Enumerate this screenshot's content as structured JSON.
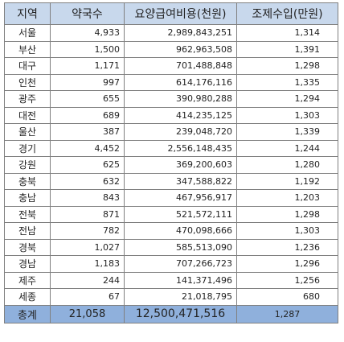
{
  "headers": [
    "지역",
    "약국수",
    "요양급여비용(천원)",
    "조제수입(만원)"
  ],
  "rows": [
    {
      "region": "서울",
      "pharmacies": "4,933",
      "cost": "2,989,843,251",
      "income": "1,314"
    },
    {
      "region": "부산",
      "pharmacies": "1,500",
      "cost": "962,963,508",
      "income": "1,391"
    },
    {
      "region": "대구",
      "pharmacies": "1,171",
      "cost": "701,488,848",
      "income": "1,298"
    },
    {
      "region": "인천",
      "pharmacies": "997",
      "cost": "614,176,116",
      "income": "1,335"
    },
    {
      "region": "광주",
      "pharmacies": "655",
      "cost": "390,980,288",
      "income": "1,294"
    },
    {
      "region": "대전",
      "pharmacies": "689",
      "cost": "414,235,125",
      "income": "1,303"
    },
    {
      "region": "울산",
      "pharmacies": "387",
      "cost": "239,048,720",
      "income": "1,339"
    },
    {
      "region": "경기",
      "pharmacies": "4,452",
      "cost": "2,556,148,435",
      "income": "1,244"
    },
    {
      "region": "강원",
      "pharmacies": "625",
      "cost": "369,200,603",
      "income": "1,280"
    },
    {
      "region": "충북",
      "pharmacies": "632",
      "cost": "347,588,822",
      "income": "1,192"
    },
    {
      "region": "충남",
      "pharmacies": "843",
      "cost": "467,956,917",
      "income": "1,203"
    },
    {
      "region": "전북",
      "pharmacies": "871",
      "cost": "521,572,111",
      "income": "1,298"
    },
    {
      "region": "전남",
      "pharmacies": "782",
      "cost": "470,098,666",
      "income": "1,303"
    },
    {
      "region": "경북",
      "pharmacies": "1,027",
      "cost": "585,513,090",
      "income": "1,236"
    },
    {
      "region": "경남",
      "pharmacies": "1,183",
      "cost": "707,266,723",
      "income": "1,296"
    },
    {
      "region": "제주",
      "pharmacies": "244",
      "cost": "141,371,496",
      "income": "1,256"
    },
    {
      "region": "세종",
      "pharmacies": "67",
      "cost": "21,018,795",
      "income": "680"
    }
  ],
  "total": {
    "region": "총계",
    "pharmacies": "21,058",
    "cost": "12,500,471,516",
    "income": "1,287"
  }
}
